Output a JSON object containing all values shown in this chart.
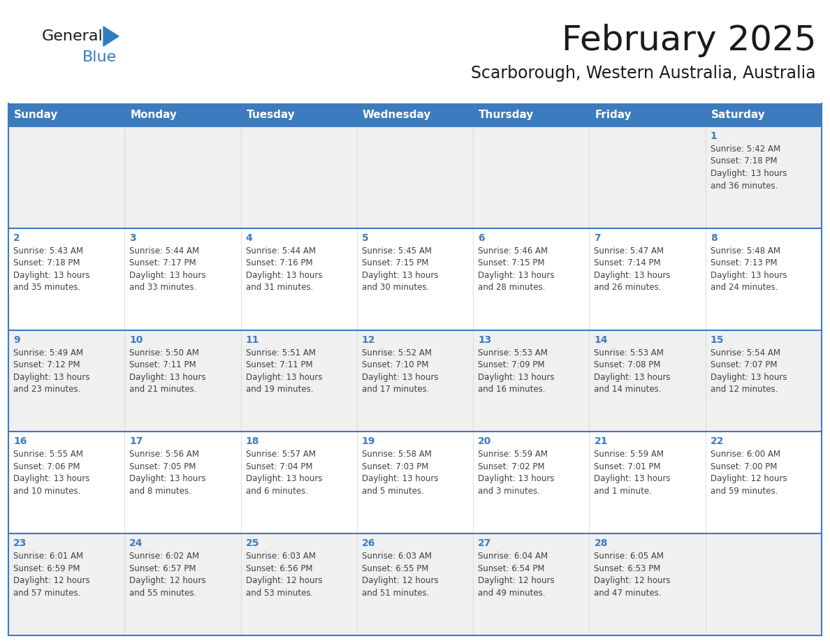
{
  "title": "February 2025",
  "subtitle": "Scarborough, Western Australia, Australia",
  "header_bg": "#3D7BBF",
  "header_text_color": "#FFFFFF",
  "cell_bg_odd": "#F0F0F0",
  "cell_bg_even": "#FFFFFF",
  "day_number_color": "#3D7BBF",
  "cell_text_color": "#404040",
  "border_color_blue": "#3D7BBF",
  "border_color_gray": "#C0C0C0",
  "days_of_week": [
    "Sunday",
    "Monday",
    "Tuesday",
    "Wednesday",
    "Thursday",
    "Friday",
    "Saturday"
  ],
  "logo_general_color": "#1a1a1a",
  "logo_blue_color": "#2E7EC1",
  "logo_triangle_color": "#2E7EC1",
  "calendar_data": [
    [
      {
        "day": 0,
        "info": ""
      },
      {
        "day": 0,
        "info": ""
      },
      {
        "day": 0,
        "info": ""
      },
      {
        "day": 0,
        "info": ""
      },
      {
        "day": 0,
        "info": ""
      },
      {
        "day": 0,
        "info": ""
      },
      {
        "day": 1,
        "info": "Sunrise: 5:42 AM\nSunset: 7:18 PM\nDaylight: 13 hours\nand 36 minutes."
      }
    ],
    [
      {
        "day": 2,
        "info": "Sunrise: 5:43 AM\nSunset: 7:18 PM\nDaylight: 13 hours\nand 35 minutes."
      },
      {
        "day": 3,
        "info": "Sunrise: 5:44 AM\nSunset: 7:17 PM\nDaylight: 13 hours\nand 33 minutes."
      },
      {
        "day": 4,
        "info": "Sunrise: 5:44 AM\nSunset: 7:16 PM\nDaylight: 13 hours\nand 31 minutes."
      },
      {
        "day": 5,
        "info": "Sunrise: 5:45 AM\nSunset: 7:15 PM\nDaylight: 13 hours\nand 30 minutes."
      },
      {
        "day": 6,
        "info": "Sunrise: 5:46 AM\nSunset: 7:15 PM\nDaylight: 13 hours\nand 28 minutes."
      },
      {
        "day": 7,
        "info": "Sunrise: 5:47 AM\nSunset: 7:14 PM\nDaylight: 13 hours\nand 26 minutes."
      },
      {
        "day": 8,
        "info": "Sunrise: 5:48 AM\nSunset: 7:13 PM\nDaylight: 13 hours\nand 24 minutes."
      }
    ],
    [
      {
        "day": 9,
        "info": "Sunrise: 5:49 AM\nSunset: 7:12 PM\nDaylight: 13 hours\nand 23 minutes."
      },
      {
        "day": 10,
        "info": "Sunrise: 5:50 AM\nSunset: 7:11 PM\nDaylight: 13 hours\nand 21 minutes."
      },
      {
        "day": 11,
        "info": "Sunrise: 5:51 AM\nSunset: 7:11 PM\nDaylight: 13 hours\nand 19 minutes."
      },
      {
        "day": 12,
        "info": "Sunrise: 5:52 AM\nSunset: 7:10 PM\nDaylight: 13 hours\nand 17 minutes."
      },
      {
        "day": 13,
        "info": "Sunrise: 5:53 AM\nSunset: 7:09 PM\nDaylight: 13 hours\nand 16 minutes."
      },
      {
        "day": 14,
        "info": "Sunrise: 5:53 AM\nSunset: 7:08 PM\nDaylight: 13 hours\nand 14 minutes."
      },
      {
        "day": 15,
        "info": "Sunrise: 5:54 AM\nSunset: 7:07 PM\nDaylight: 13 hours\nand 12 minutes."
      }
    ],
    [
      {
        "day": 16,
        "info": "Sunrise: 5:55 AM\nSunset: 7:06 PM\nDaylight: 13 hours\nand 10 minutes."
      },
      {
        "day": 17,
        "info": "Sunrise: 5:56 AM\nSunset: 7:05 PM\nDaylight: 13 hours\nand 8 minutes."
      },
      {
        "day": 18,
        "info": "Sunrise: 5:57 AM\nSunset: 7:04 PM\nDaylight: 13 hours\nand 6 minutes."
      },
      {
        "day": 19,
        "info": "Sunrise: 5:58 AM\nSunset: 7:03 PM\nDaylight: 13 hours\nand 5 minutes."
      },
      {
        "day": 20,
        "info": "Sunrise: 5:59 AM\nSunset: 7:02 PM\nDaylight: 13 hours\nand 3 minutes."
      },
      {
        "day": 21,
        "info": "Sunrise: 5:59 AM\nSunset: 7:01 PM\nDaylight: 13 hours\nand 1 minute."
      },
      {
        "day": 22,
        "info": "Sunrise: 6:00 AM\nSunset: 7:00 PM\nDaylight: 12 hours\nand 59 minutes."
      }
    ],
    [
      {
        "day": 23,
        "info": "Sunrise: 6:01 AM\nSunset: 6:59 PM\nDaylight: 12 hours\nand 57 minutes."
      },
      {
        "day": 24,
        "info": "Sunrise: 6:02 AM\nSunset: 6:57 PM\nDaylight: 12 hours\nand 55 minutes."
      },
      {
        "day": 25,
        "info": "Sunrise: 6:03 AM\nSunset: 6:56 PM\nDaylight: 12 hours\nand 53 minutes."
      },
      {
        "day": 26,
        "info": "Sunrise: 6:03 AM\nSunset: 6:55 PM\nDaylight: 12 hours\nand 51 minutes."
      },
      {
        "day": 27,
        "info": "Sunrise: 6:04 AM\nSunset: 6:54 PM\nDaylight: 12 hours\nand 49 minutes."
      },
      {
        "day": 28,
        "info": "Sunrise: 6:05 AM\nSunset: 6:53 PM\nDaylight: 12 hours\nand 47 minutes."
      },
      {
        "day": 0,
        "info": ""
      }
    ]
  ]
}
